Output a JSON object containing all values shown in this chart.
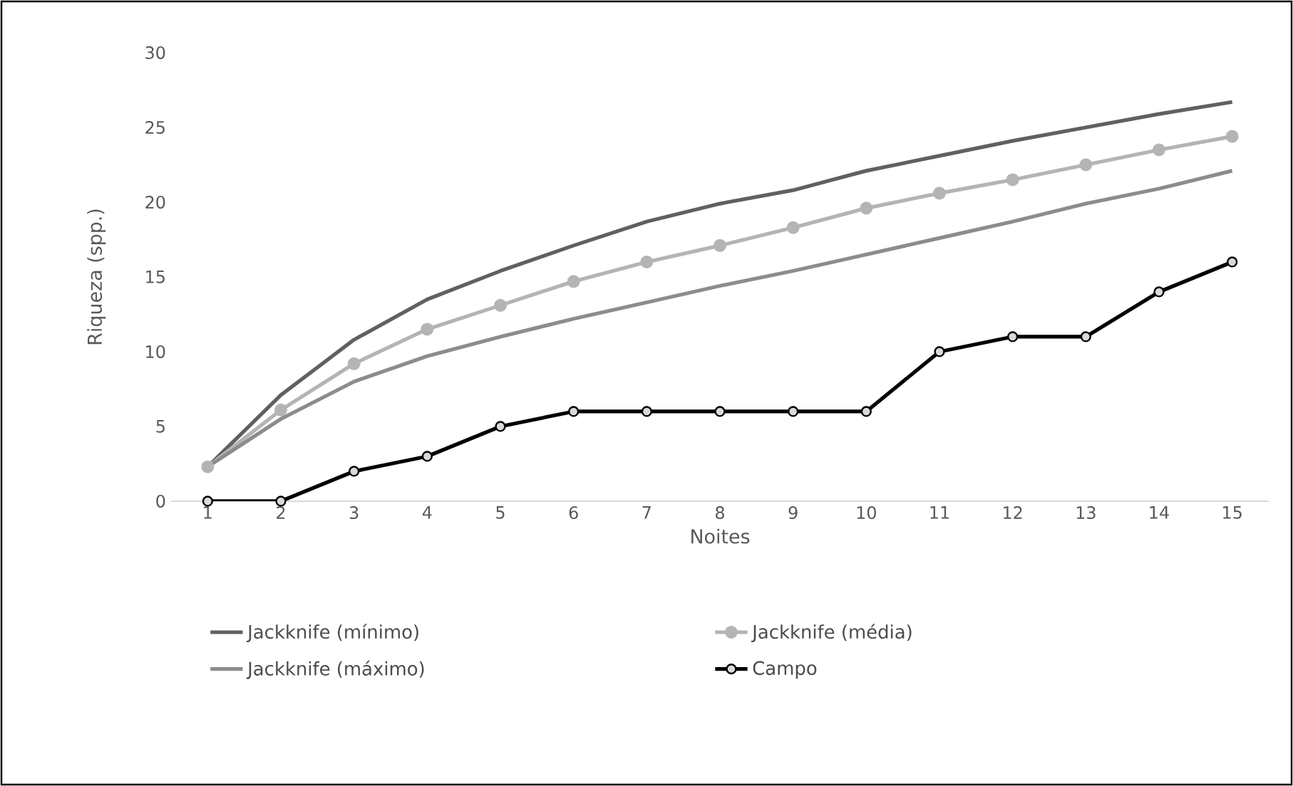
{
  "chart_data": {
    "type": "line",
    "xlabel": "Noites",
    "ylabel": "Riqueza (spp.)",
    "categories": [
      "1",
      "2",
      "3",
      "4",
      "5",
      "6",
      "7",
      "8",
      "9",
      "10",
      "11",
      "12",
      "13",
      "14",
      "15"
    ],
    "ylim": [
      0,
      30
    ],
    "yticks": [
      0,
      5,
      10,
      15,
      20,
      25,
      30
    ],
    "grid": false,
    "legend": "bottom",
    "series": [
      {
        "name": "Jackknife (mínimo)",
        "color": "#606060",
        "marker": "none",
        "values": [
          2.3,
          7.1,
          10.8,
          13.5,
          15.4,
          17.1,
          18.7,
          19.9,
          20.8,
          22.1,
          23.1,
          24.1,
          25.0,
          25.9,
          26.7
        ]
      },
      {
        "name": "Jackknife (média)",
        "color": "#b4b4b4",
        "marker": "circle",
        "values": [
          2.3,
          6.1,
          9.2,
          11.5,
          13.1,
          14.7,
          16.0,
          17.1,
          18.3,
          19.6,
          20.6,
          21.5,
          22.5,
          23.5,
          24.4
        ]
      },
      {
        "name": "Jackknife (máximo)",
        "color": "#8c8c8c",
        "marker": "none",
        "values": [
          2.3,
          5.5,
          8.0,
          9.7,
          11.0,
          12.2,
          13.3,
          14.4,
          15.4,
          16.5,
          17.6,
          18.7,
          19.9,
          20.9,
          22.1
        ]
      },
      {
        "name": "Campo",
        "color": "#000000",
        "marker": "circle",
        "values": [
          0,
          0,
          2,
          3,
          5,
          6,
          6,
          6,
          6,
          6,
          10,
          11,
          11,
          14,
          16
        ]
      }
    ]
  }
}
